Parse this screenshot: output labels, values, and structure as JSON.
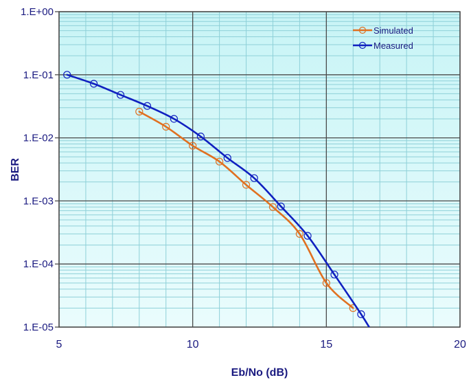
{
  "chart_data": {
    "type": "line",
    "title": "",
    "xlabel": "Eb/No (dB)",
    "ylabel": "BER",
    "x_axis": {
      "min": 5,
      "max": 20,
      "ticks": [
        5,
        10,
        15,
        20
      ]
    },
    "y_axis": {
      "scale": "log",
      "min": 1e-05,
      "max": 1,
      "ticks": [
        1,
        0.1,
        0.01,
        0.001,
        0.0001,
        1e-05
      ],
      "tick_labels": [
        "1.E+00",
        "1.E-01",
        "1.E-02",
        "1.E-03",
        "1.E-04",
        "1.E-05"
      ]
    },
    "grid": true,
    "minor_grid": true,
    "legend_position": "top-right",
    "series": [
      {
        "name": "Simulated",
        "color": "#e07020",
        "x": [
          8.0,
          9.0,
          10.0,
          11.0,
          12.0,
          13.0,
          14.0,
          15.0,
          16.0
        ],
        "y": [
          0.026,
          0.015,
          0.0075,
          0.0042,
          0.0018,
          0.0008,
          0.0003,
          5e-05,
          2e-05
        ]
      },
      {
        "name": "Measured",
        "color": "#1020c0",
        "x": [
          5.3,
          6.3,
          7.3,
          8.3,
          9.3,
          10.3,
          11.3,
          12.3,
          13.3,
          14.3,
          15.3,
          16.3
        ],
        "y": [
          0.1,
          0.072,
          0.048,
          0.032,
          0.02,
          0.0105,
          0.0048,
          0.0023,
          0.00082,
          0.00028,
          6.8e-05,
          1.6e-05
        ],
        "line_end": {
          "x": 16.7,
          "y": 8.5e-06
        }
      }
    ]
  },
  "colors": {
    "plot_bg_top": "#c8f4f6",
    "plot_bg_bottom": "#eafcfd",
    "grid_major": "#4a4a4a",
    "grid_minor": "#8ed0d8",
    "text": "#1a1a80"
  }
}
